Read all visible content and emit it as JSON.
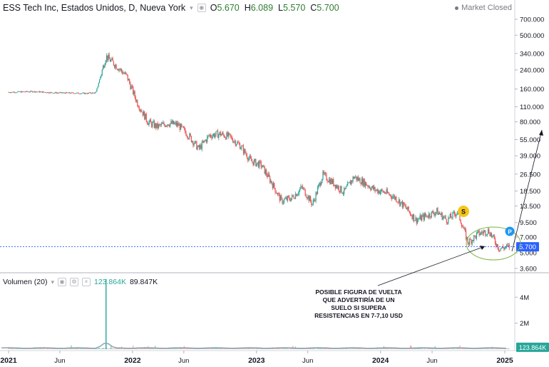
{
  "header": {
    "symbol": "ESS Tech Inc, Estados Unidos, D, Nueva York",
    "o_label": "O",
    "o_value": "5.670",
    "h_label": "H",
    "h_value": "6.089",
    "l_label": "L",
    "l_value": "5.570",
    "c_label": "C",
    "c_value": "5.700",
    "market_status": "Market Closed"
  },
  "volume_legend": {
    "label": "Volumen (20)",
    "value1": "123.864K",
    "value2": "89.847K"
  },
  "annotation": {
    "lines": [
      "POSIBLE FIGURA DE VUELTA",
      "QUE ADVERTIRÍA DE UN",
      "SUELO SI SUPERA",
      "RESISTENCIAS EN 7-7,10 USD"
    ],
    "badge_s": "S",
    "badge_p": "P"
  },
  "colors": {
    "up": "#26a69a",
    "down": "#ef5350",
    "badge_s": "#f5c518",
    "badge_p": "#2196f3",
    "price_line": "#2962ff",
    "ellipse": "#7cb342",
    "volume_ma": "#90a4ae",
    "volume_last": "#26a69a"
  },
  "chart_data": {
    "type": "line",
    "title": "ESS Tech Inc, Estados Unidos, D, Nueva York",
    "scale": "log",
    "price_ticks": [
      "700.000",
      "500.000",
      "340.000",
      "240.000",
      "160.000",
      "110.000",
      "80.000",
      "55.000",
      "39.000",
      "26.500",
      "18.500",
      "13.500",
      "9.500",
      "7.000",
      "5.000",
      "3.600"
    ],
    "volume_ticks": [
      "4M",
      "2M"
    ],
    "x_ticks": [
      "2021",
      "Jun",
      "2022",
      "Jun",
      "2023",
      "Jun",
      "2024",
      "Jun",
      "2025"
    ],
    "last_price_label": "5.700",
    "last_volume_label": "123.864K",
    "series": [
      {
        "values_note": "approximate closing prices read from the price axis",
        "x": [
          "2021-01",
          "2021-03",
          "2021-05",
          "2021-07",
          "2021-08",
          "2021-09",
          "2021-10",
          "2021-11",
          "2021-12",
          "2022-01",
          "2022-02",
          "2022-03",
          "2022-04",
          "2022-05",
          "2022-06",
          "2022-07",
          "2022-08",
          "2022-09",
          "2022-10",
          "2022-11",
          "2022-12",
          "2023-01",
          "2023-02",
          "2023-03",
          "2023-04",
          "2023-05",
          "2023-06",
          "2023-07",
          "2023-08",
          "2023-09",
          "2023-10",
          "2023-11",
          "2023-12",
          "2024-01",
          "2024-02",
          "2024-03",
          "2024-04",
          "2024-05",
          "2024-06",
          "2024-07",
          "2024-08",
          "2024-09",
          "2024-10",
          "2024-11",
          "2024-12",
          "2025-01"
        ],
        "y": [
          150,
          152,
          148,
          147,
          146,
          148,
          320,
          260,
          210,
          120,
          80,
          72,
          78,
          75,
          60,
          45,
          60,
          62,
          58,
          48,
          35,
          32,
          22,
          15,
          16,
          20,
          14,
          26,
          22,
          18,
          25,
          22,
          19,
          18,
          16,
          13,
          10,
          11,
          12,
          10,
          12,
          6.2,
          7.5,
          8,
          5.5,
          5.7
        ]
      }
    ],
    "volume": {
      "x": [
        "2021-01",
        "2021-06",
        "2021-10",
        "2021-11",
        "2022-01",
        "2022-06",
        "2023-01",
        "2023-06",
        "2024-01",
        "2024-06",
        "2024-12"
      ],
      "y": [
        0.05,
        0.05,
        5.4,
        0.2,
        0.1,
        0.08,
        0.07,
        0.07,
        0.06,
        0.1,
        0.12
      ],
      "unit": "M"
    }
  }
}
